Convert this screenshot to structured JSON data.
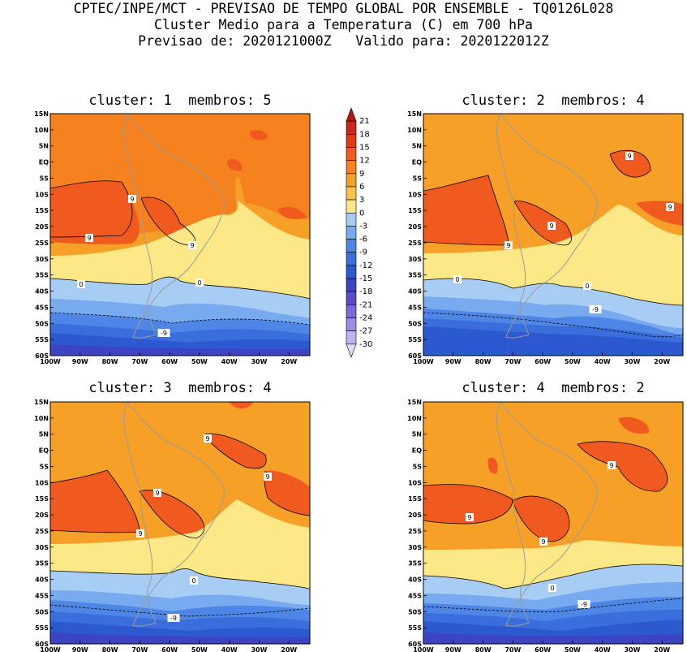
{
  "header": {
    "line1": "CPTEC/INPE/MCT - PREVISAO DE TEMPO GLOBAL POR ENSEMBLE - TQ0126L028",
    "line2": "Cluster Medio para a Temperatura (C) em 700 hPa",
    "line3": "Previsao de: 2020121000Z   Valido para: 2020122012Z"
  },
  "panels": [
    {
      "title": "cluster: 1  membros: 5"
    },
    {
      "title": "cluster: 2  membros: 4"
    },
    {
      "title": "cluster: 3  membros: 4"
    },
    {
      "title": "cluster: 4  membros: 2"
    }
  ],
  "lat_labels": [
    "15N",
    "10N",
    "5N",
    "EQ",
    "5S",
    "10S",
    "15S",
    "20S",
    "25S",
    "30S",
    "35S",
    "40S",
    "45S",
    "50S",
    "55S",
    "60S"
  ],
  "lon_labels": [
    "100W",
    "90W",
    "80W",
    "70W",
    "60W",
    "50W",
    "40W",
    "30W",
    "20W"
  ],
  "colorbar": {
    "levels": [
      "21",
      "18",
      "15",
      "12",
      "9",
      "6",
      "3",
      "0",
      "-3",
      "-6",
      "-9",
      "-12",
      "-15",
      "-18",
      "-21",
      "-24",
      "-27",
      "-30"
    ],
    "colors": [
      "#b01a10",
      "#c8281a",
      "#e03a14",
      "#f05a1e",
      "#f5821e",
      "#f7a028",
      "#fbc24a",
      "#fde887",
      "#a8cdf5",
      "#78aaf0",
      "#4e86e6",
      "#3a6edc",
      "#2c58d0",
      "#3c44c4",
      "#5a4cc8",
      "#7a6ad8",
      "#9c8ce4",
      "#bfb4ee",
      "#e0dcf8"
    ]
  },
  "contour_labels": {
    "panel1": [
      "9",
      "9",
      "9",
      "0",
      "0",
      "-9"
    ],
    "panel2": [
      "9",
      "9",
      "9",
      "9",
      "0",
      "0",
      "-9"
    ],
    "panel3": [
      "9",
      "9",
      "9",
      "9",
      "0",
      "-9"
    ],
    "panel4": [
      "9",
      "9",
      "9",
      "0",
      "-9"
    ]
  }
}
